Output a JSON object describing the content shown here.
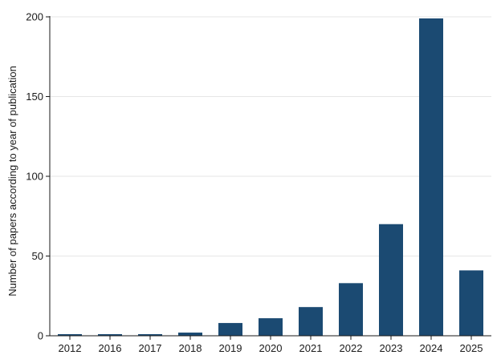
{
  "chart_data": {
    "type": "bar",
    "title": "",
    "xlabel": "",
    "ylabel": "Number of papers according to year of publication",
    "categories": [
      "2012",
      "2016",
      "2017",
      "2018",
      "2019",
      "2020",
      "2021",
      "2022",
      "2023",
      "2024",
      "2025"
    ],
    "values": [
      1,
      1,
      1,
      2,
      8,
      11,
      18,
      33,
      70,
      199,
      41
    ],
    "ylim": [
      0,
      200
    ],
    "yticks": [
      0,
      50,
      100,
      150,
      200
    ],
    "grid": true,
    "bar_color": "#1b4a72",
    "grid_color": "#e6e6e6"
  }
}
